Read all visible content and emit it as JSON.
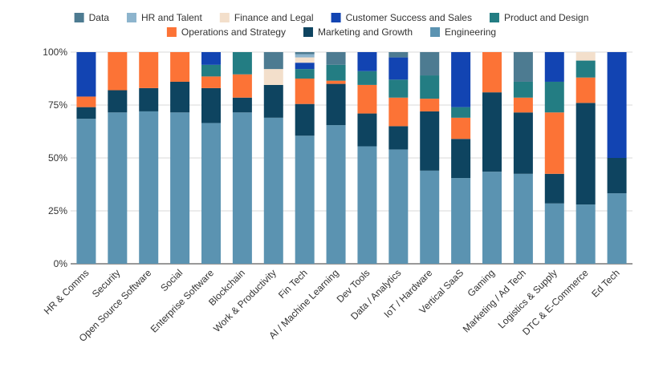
{
  "chart_data": {
    "type": "bar",
    "stacked": "percent",
    "title": "",
    "xlabel": "",
    "ylabel": "",
    "ylim": [
      0,
      100
    ],
    "y_ticks": [
      "0%",
      "25%",
      "50%",
      "75%",
      "100%"
    ],
    "grid": "horizontal",
    "legend_position": "top",
    "categories": [
      "HR & Comms",
      "Security",
      "Open Source Software",
      "Social",
      "Enterprise Software",
      "Blockchain",
      "Work & Productivity",
      "Fin Tech",
      "AI / Machine Learning",
      "Dev Tools",
      "Data / Analytics",
      "IoT / Hardware",
      "Vertical SaaS",
      "Gaming",
      "Marketing / Ad Tech",
      "Logistics & Supply",
      "DTC & E-Commerce",
      "Ed Tech"
    ],
    "legend_order": [
      "Data",
      "HR and Talent",
      "Finance and Legal",
      "Customer Success and Sales",
      "Product and Design",
      "Operations and Strategy",
      "Marketing and Growth",
      "Engineering"
    ],
    "series": [
      {
        "name": "Engineering",
        "color": "#5b93b1",
        "values": [
          68.5,
          71.5,
          72,
          71.5,
          66.5,
          71.5,
          69,
          60.5,
          65.5,
          55.5,
          54,
          44,
          40.5,
          43.5,
          42.5,
          28.5,
          28,
          33.3
        ]
      },
      {
        "name": "Marketing and Growth",
        "color": "#0e4460",
        "values": [
          5.5,
          10.5,
          11,
          14.5,
          16.5,
          7,
          15.5,
          15,
          19.5,
          15.5,
          11,
          28,
          18.5,
          37.5,
          29,
          14,
          48,
          16.7
        ]
      },
      {
        "name": "Operations and Strategy",
        "color": "#fc7336",
        "values": [
          5,
          18,
          17,
          14,
          5.5,
          11,
          0,
          12,
          1.5,
          13.5,
          13.5,
          6,
          10,
          19,
          7,
          29,
          12,
          0
        ]
      },
      {
        "name": "Product and Design",
        "color": "#237d83",
        "values": [
          0,
          0,
          0,
          0,
          5.5,
          10.5,
          0,
          4.5,
          7.5,
          6.5,
          8.5,
          11,
          5,
          0,
          7.5,
          14.5,
          8,
          0
        ]
      },
      {
        "name": "Customer Success and Sales",
        "color": "#1244b2",
        "values": [
          21,
          0,
          0,
          0,
          6,
          0,
          0,
          3,
          0,
          9,
          10.5,
          0,
          26,
          0,
          0,
          14,
          0,
          50
        ]
      },
      {
        "name": "Finance and Legal",
        "color": "#f3dfcb",
        "values": [
          0,
          0,
          0,
          0,
          0,
          0,
          7.5,
          2.5,
          0,
          0,
          0,
          0,
          0,
          0,
          0,
          0,
          4,
          0
        ]
      },
      {
        "name": "HR and Talent",
        "color": "#8db4cd",
        "values": [
          0,
          0,
          0,
          0,
          0,
          0,
          0,
          1.5,
          0,
          0,
          0,
          0,
          0,
          0,
          0,
          0,
          0,
          0
        ]
      },
      {
        "name": "Data",
        "color": "#4d7b91",
        "values": [
          0,
          0,
          0,
          0,
          0,
          0,
          8,
          1,
          6,
          0,
          2.5,
          11,
          0,
          0,
          14,
          0,
          0,
          0
        ]
      }
    ]
  }
}
